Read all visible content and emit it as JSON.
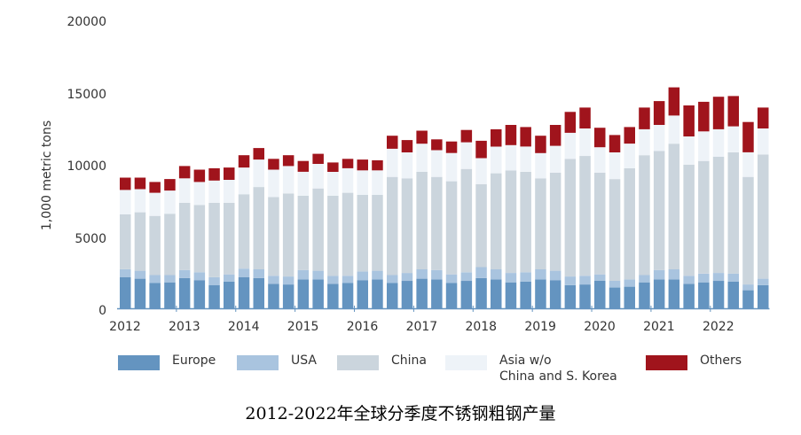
{
  "chart_data": {
    "type": "bar",
    "stacked": true,
    "title": "",
    "caption": "2012-2022年全球分季度不锈钢粗钢产量",
    "xlabel": "",
    "ylabel": "1,000 metric tons",
    "ylim": [
      0,
      20000
    ],
    "yticks": [
      0,
      5000,
      10000,
      15000,
      20000
    ],
    "xtick_labels": [
      "2012",
      "2013",
      "2014",
      "2015",
      "2016",
      "2017",
      "2018",
      "2019",
      "2020",
      "2021",
      "2022"
    ],
    "grid": false,
    "legend_position": "bottom",
    "categories": [
      "2012Q1",
      "2012Q2",
      "2012Q3",
      "2012Q4",
      "2013Q1",
      "2013Q2",
      "2013Q3",
      "2013Q4",
      "2014Q1",
      "2014Q2",
      "2014Q3",
      "2014Q4",
      "2015Q1",
      "2015Q2",
      "2015Q3",
      "2015Q4",
      "2016Q1",
      "2016Q2",
      "2016Q3",
      "2016Q4",
      "2017Q1",
      "2017Q2",
      "2017Q3",
      "2017Q4",
      "2018Q1",
      "2018Q2",
      "2018Q3",
      "2018Q4",
      "2019Q1",
      "2019Q2",
      "2019Q3",
      "2019Q4",
      "2020Q1",
      "2020Q2",
      "2020Q3",
      "2020Q4",
      "2021Q1",
      "2021Q2",
      "2021Q3",
      "2021Q4",
      "2022Q1",
      "2022Q2",
      "2022Q3",
      "2022Q4"
    ],
    "series": [
      {
        "name": "Europe",
        "color": "#6494c0",
        "values": [
          2150,
          2050,
          1750,
          1800,
          2100,
          1950,
          1600,
          1850,
          2150,
          2100,
          1700,
          1650,
          2000,
          2000,
          1700,
          1750,
          1950,
          2000,
          1750,
          1900,
          2050,
          2000,
          1750,
          1900,
          2100,
          2000,
          1800,
          1850,
          2000,
          1950,
          1600,
          1650,
          1900,
          1450,
          1500,
          1800,
          2000,
          2000,
          1700,
          1800,
          1900,
          1850,
          1250,
          1600
        ]
      },
      {
        "name": "USA",
        "color": "#a9c4df",
        "values": [
          550,
          550,
          550,
          500,
          550,
          550,
          550,
          500,
          600,
          600,
          550,
          550,
          650,
          600,
          550,
          500,
          600,
          600,
          550,
          550,
          650,
          650,
          600,
          600,
          750,
          700,
          650,
          650,
          700,
          650,
          600,
          600,
          450,
          450,
          500,
          500,
          650,
          700,
          550,
          600,
          550,
          550,
          400,
          450
        ]
      },
      {
        "name": "China",
        "color": "#cbd5dd",
        "values": [
          3800,
          4050,
          4100,
          4250,
          4650,
          4650,
          5150,
          4950,
          5150,
          5700,
          5450,
          5750,
          5150,
          5700,
          5550,
          5750,
          5300,
          5250,
          6800,
          6550,
          6750,
          6450,
          6450,
          7150,
          5750,
          6650,
          7100,
          6950,
          6300,
          6800,
          8150,
          8300,
          7050,
          7050,
          7700,
          8300,
          8250,
          8700,
          7700,
          7800,
          8050,
          8400,
          7450,
          8600
        ]
      },
      {
        "name": "Asia w/o China and S. Korea",
        "color": "#eef3f8",
        "values": [
          1700,
          1600,
          1600,
          1600,
          1700,
          1600,
          1550,
          1600,
          1850,
          1900,
          1900,
          1900,
          1650,
          1700,
          1650,
          1700,
          1700,
          1700,
          1950,
          1800,
          1950,
          1850,
          1950,
          1850,
          1800,
          1850,
          1750,
          1750,
          1750,
          1850,
          1800,
          1900,
          1750,
          1850,
          1700,
          1800,
          1800,
          1950,
          1950,
          2050,
          1900,
          1800,
          1700,
          1800
        ]
      },
      {
        "name": "Others",
        "color": "#a0141c",
        "values": [
          850,
          800,
          750,
          800,
          850,
          850,
          850,
          850,
          850,
          800,
          750,
          750,
          750,
          700,
          650,
          650,
          750,
          700,
          900,
          850,
          900,
          750,
          800,
          850,
          1200,
          1200,
          1400,
          1350,
          1200,
          1450,
          1450,
          1450,
          1350,
          1200,
          1150,
          1500,
          1650,
          1950,
          2150,
          2050,
          2250,
          2100,
          2100,
          1450
        ]
      }
    ]
  },
  "axis": {
    "ylabel": "1,000 metric tons",
    "yticks": [
      "20000",
      "15000",
      "10000",
      "5000",
      "0"
    ],
    "xticks": [
      "2012",
      "2013",
      "2014",
      "2015",
      "2016",
      "2017",
      "2018",
      "2019",
      "2020",
      "2021",
      "2022"
    ]
  },
  "legend": [
    {
      "label": "Europe",
      "color": "#6494c0"
    },
    {
      "label": "USA",
      "color": "#a9c4df"
    },
    {
      "label": "China",
      "color": "#cbd5dd"
    },
    {
      "label": "Asia w/o\nChina and S. Korea",
      "color": "#eef3f8"
    },
    {
      "label": "Others",
      "color": "#a0141c"
    }
  ],
  "caption": "2012-2022年全球分季度不锈钢粗钢产量"
}
